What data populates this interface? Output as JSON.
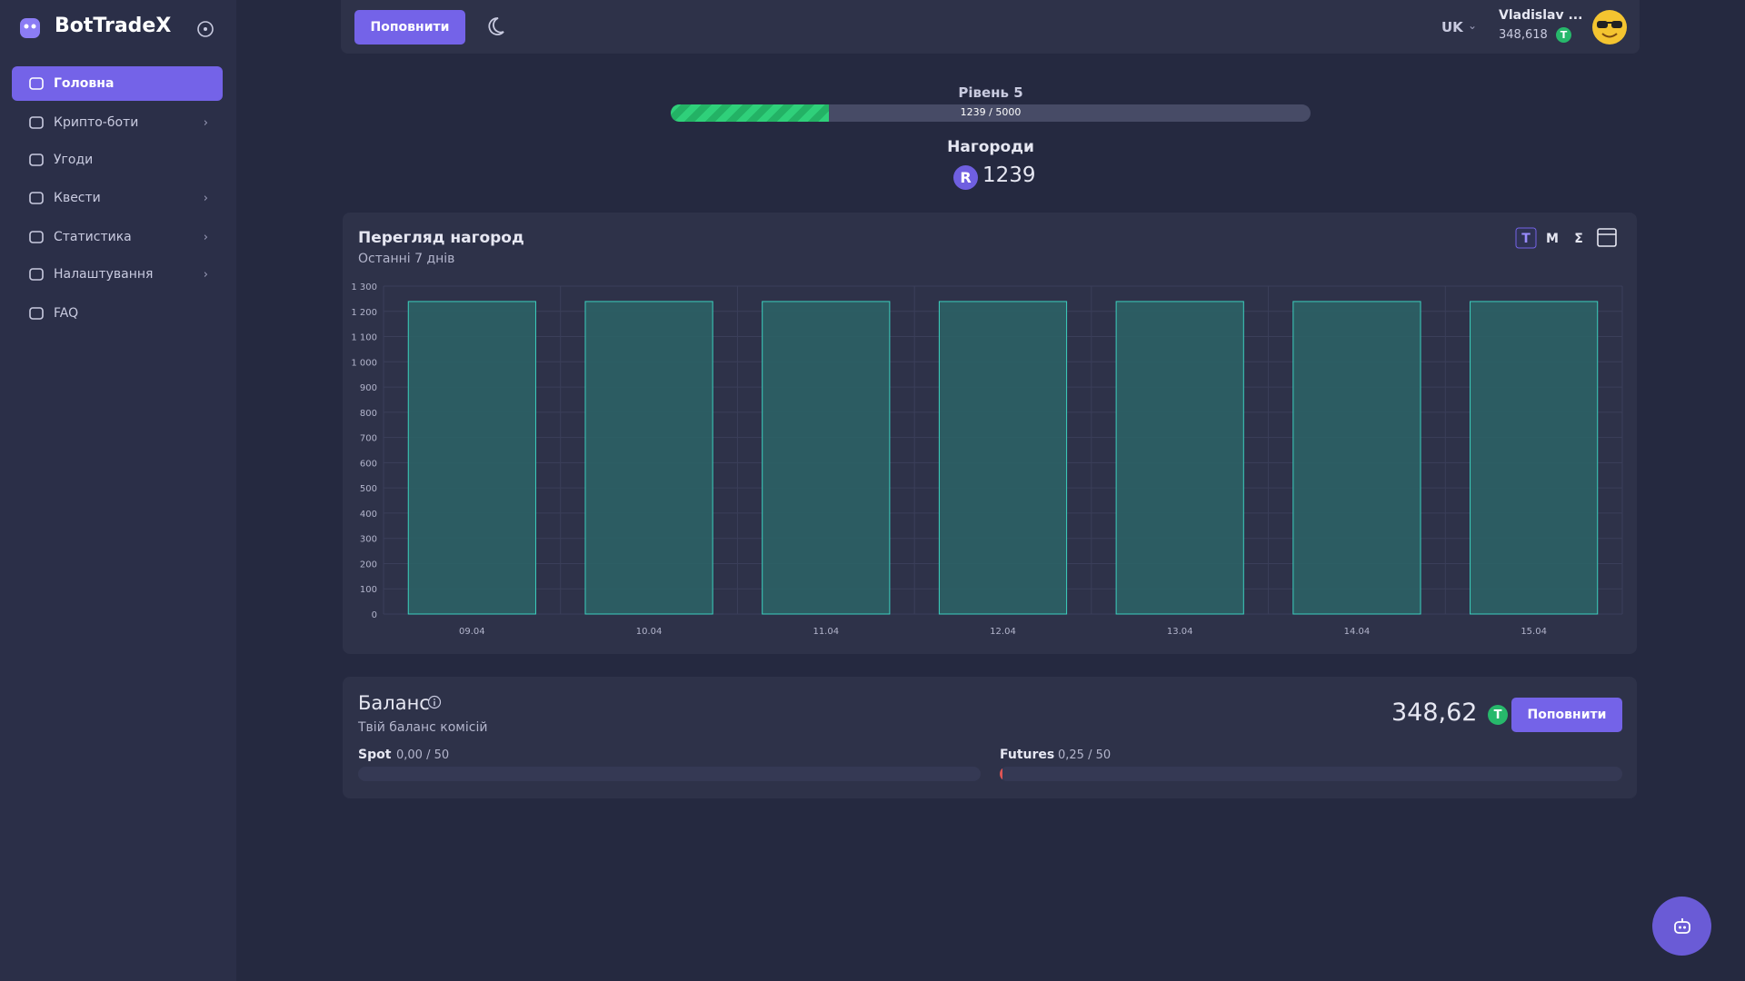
{
  "sidebar": {
    "brand": "BotTradeX",
    "menu": [
      "Головна",
      "Крипто-боти",
      "Угоди",
      "Квести",
      "Статистика",
      "Налаштування",
      "FAQ"
    ]
  },
  "header": {
    "topup_button": "Поповнити",
    "language": "UK",
    "user_name": "Vladislav ...",
    "user_balance": "348,618",
    "currency_badge": "T"
  },
  "level": {
    "title": "Рівень 5",
    "progress_label": "1239 / 5000",
    "progress": 1239,
    "progress_max": 5000
  },
  "rewards": {
    "title": "Нагороди",
    "badge": "R",
    "amount": "1239"
  },
  "chart_data": {
    "type": "bar",
    "title": "Перегляд нагород",
    "subtitle": "Останні 7 днів",
    "period_buttons": [
      "T",
      "M",
      "Σ"
    ],
    "categories": [
      "09.04",
      "10.04",
      "11.04",
      "12.04",
      "13.04",
      "14.04",
      "15.04"
    ],
    "values": [
      1239,
      1239,
      1239,
      1239,
      1239,
      1239,
      1239
    ],
    "color": "#2c6466",
    "ylim": [
      0,
      1300
    ],
    "yticks": [
      0,
      100,
      200,
      300,
      400,
      500,
      600,
      700,
      800,
      900,
      {
        "value": 1000,
        "label": "1 000"
      },
      {
        "value": 1100,
        "label": "1 100"
      },
      {
        "value": 1200,
        "label": "1 200"
      },
      {
        "value": 1300,
        "label": "1 300"
      }
    ],
    "grid": true
  },
  "balance": {
    "title": "Баланс",
    "subtitle": "Твій баланс комісій",
    "amount": "348,62",
    "currency_badge": "T",
    "topup_button": "Поповнити",
    "spot": {
      "label": "Spot",
      "text": "0,00 / 50",
      "value": 0,
      "max": 50
    },
    "futures": {
      "label": "Futures",
      "text": "0,25 / 50",
      "value": 0.25,
      "max": 50
    }
  }
}
